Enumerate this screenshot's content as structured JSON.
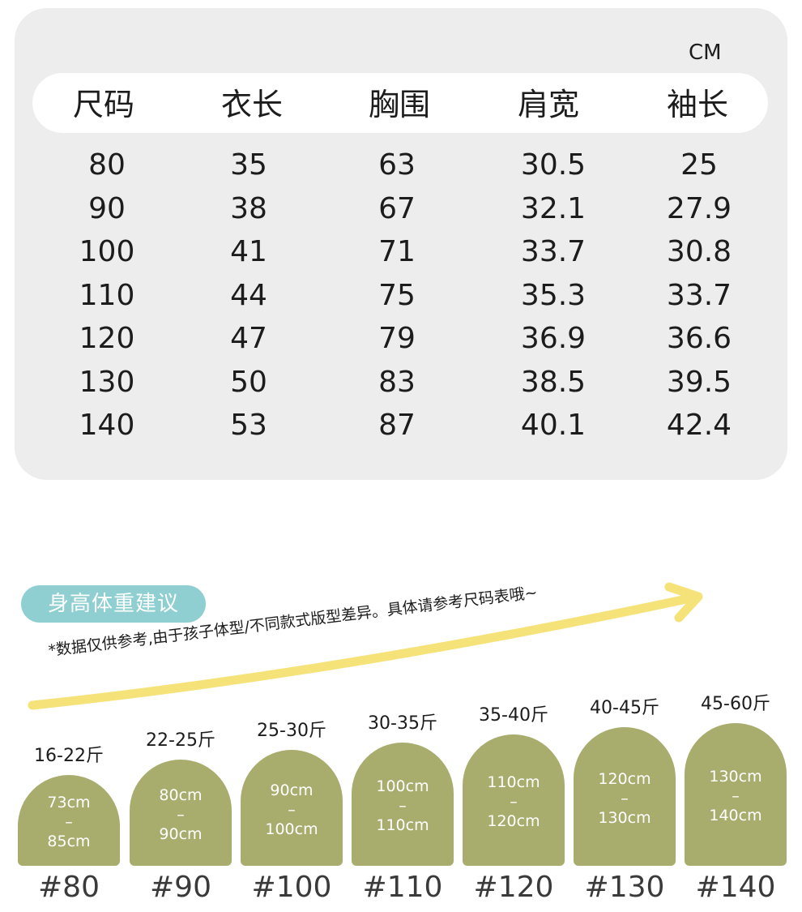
{
  "table": {
    "unit": "CM",
    "headers": [
      "尺码",
      "衣长",
      "胸围",
      "肩宽",
      "袖长"
    ],
    "rows": [
      [
        "80",
        "35",
        "63",
        "30.5",
        "25"
      ],
      [
        "90",
        "38",
        "67",
        "32.1",
        "27.9"
      ],
      [
        "100",
        "41",
        "71",
        "33.7",
        "30.8"
      ],
      [
        "110",
        "44",
        "75",
        "35.3",
        "33.7"
      ],
      [
        "120",
        "47",
        "79",
        "36.9",
        "36.6"
      ],
      [
        "130",
        "50",
        "83",
        "38.5",
        "39.5"
      ],
      [
        "140",
        "53",
        "87",
        "40.1",
        "42.4"
      ]
    ]
  },
  "recommendation": {
    "badge": "身高体重建议",
    "note": "*数据仅供参考,由于孩子体型/不同款式版型差异。具体请参考尺码表哦~",
    "dash": "–",
    "sizes": [
      {
        "weight": "16-22斤",
        "height_min": "73cm",
        "height_max": "85cm",
        "size": "#80"
      },
      {
        "weight": "22-25斤",
        "height_min": "80cm",
        "height_max": "90cm",
        "size": "#90"
      },
      {
        "weight": "25-30斤",
        "height_min": "90cm",
        "height_max": "100cm",
        "size": "#100"
      },
      {
        "weight": "30-35斤",
        "height_min": "100cm",
        "height_max": "110cm",
        "size": "#110"
      },
      {
        "weight": "35-40斤",
        "height_min": "110cm",
        "height_max": "120cm",
        "size": "#120"
      },
      {
        "weight": "40-45斤",
        "height_min": "120cm",
        "height_max": "130cm",
        "size": "#130"
      },
      {
        "weight": "45-60斤",
        "height_min": "130cm",
        "height_max": "140cm",
        "size": "#140"
      }
    ],
    "colors": {
      "badge": "#8fcfd1",
      "shape": "#a8ad6e",
      "arrow": "#f5e37a"
    }
  }
}
